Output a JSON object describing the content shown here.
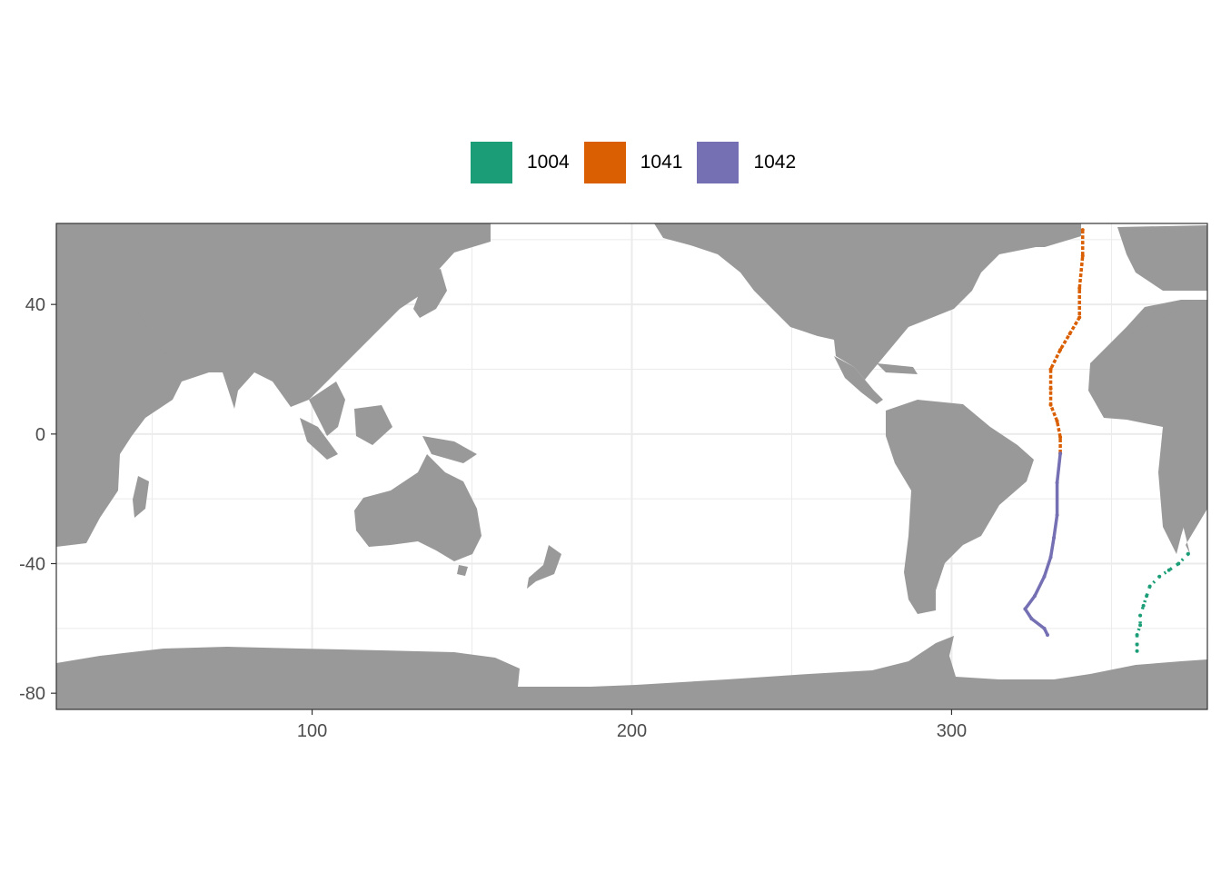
{
  "chart_data": {
    "type": "scatter",
    "title": "",
    "xlabel": "",
    "ylabel": "",
    "xlim": [
      20,
      380
    ],
    "ylim": [
      -85,
      65
    ],
    "x_ticks": [
      100,
      200,
      300
    ],
    "y_ticks": [
      40,
      0,
      -40,
      -80
    ],
    "grid": true,
    "legend_position": "top",
    "background_land_color": "#999999",
    "series": [
      {
        "name": "1004",
        "color": "#1B9E77",
        "style": "dotted",
        "points": [
          [
            374,
            -37
          ],
          [
            371,
            -40
          ],
          [
            368,
            -42
          ],
          [
            365,
            -44
          ],
          [
            362,
            -47
          ],
          [
            361,
            -50
          ],
          [
            360,
            -53
          ],
          [
            359,
            -56
          ],
          [
            359,
            -59
          ],
          [
            358,
            -62
          ],
          [
            358,
            -65
          ],
          [
            358,
            -67
          ]
        ]
      },
      {
        "name": "1041",
        "color": "#D95F02",
        "style": "dashed",
        "points": [
          [
            341,
            63
          ],
          [
            341,
            55
          ],
          [
            340,
            45
          ],
          [
            340,
            36
          ],
          [
            337,
            31
          ],
          [
            334,
            26
          ],
          [
            331,
            20
          ],
          [
            331,
            14
          ],
          [
            331,
            9
          ],
          [
            333,
            4
          ],
          [
            334,
            -1
          ],
          [
            334,
            -6
          ]
        ]
      },
      {
        "name": "1042",
        "color": "#7570B3",
        "style": "solid",
        "points": [
          [
            334,
            -6
          ],
          [
            333,
            -15
          ],
          [
            333,
            -25
          ],
          [
            332,
            -32
          ],
          [
            331,
            -38
          ],
          [
            329,
            -44
          ],
          [
            326,
            -50
          ],
          [
            323,
            -54
          ],
          [
            325,
            -57
          ],
          [
            329,
            -60
          ],
          [
            330,
            -62
          ]
        ]
      }
    ]
  }
}
